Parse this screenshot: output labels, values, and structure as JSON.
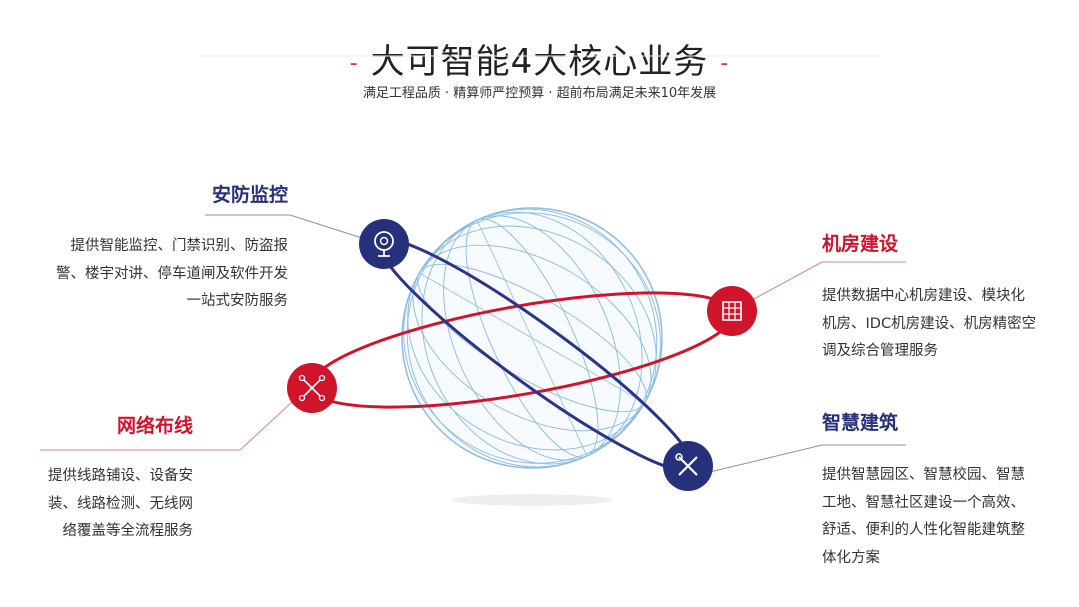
{
  "header": {
    "title": "大可智能4大核心业务",
    "subtitle": "满足工程品质 · 精算师严控预算 · 超前布局满足未来10年发展"
  },
  "colors": {
    "navy": "#2b3488",
    "red": "#d0152b",
    "globe": "#8fbde8"
  },
  "services": [
    {
      "title": "安防监控",
      "icon": "webcam-icon",
      "lines": [
        "提供智能监控、门禁识别、防盗报",
        "警、楼宇对讲、停车道闸及软件开发",
        "一站式安防服务"
      ]
    },
    {
      "title": "机房建设",
      "icon": "building-icon",
      "lines": [
        "提供数据中心机房建设、模块化",
        "机房、IDC机房建设、机房精密空",
        "调及综合管理服务"
      ]
    },
    {
      "title": "网络布线",
      "icon": "network-icon",
      "lines": [
        "提供线路铺设、设备安",
        "装、线路检测、无线网",
        "络覆盖等全流程服务"
      ]
    },
    {
      "title": "智慧建筑",
      "icon": "tools-icon",
      "lines": [
        "提供智慧园区、智慧校园、智慧",
        "工地、智慧社区建设一个高效、",
        "舒适、便利的人性化智能建筑整",
        "体化方案"
      ]
    }
  ]
}
